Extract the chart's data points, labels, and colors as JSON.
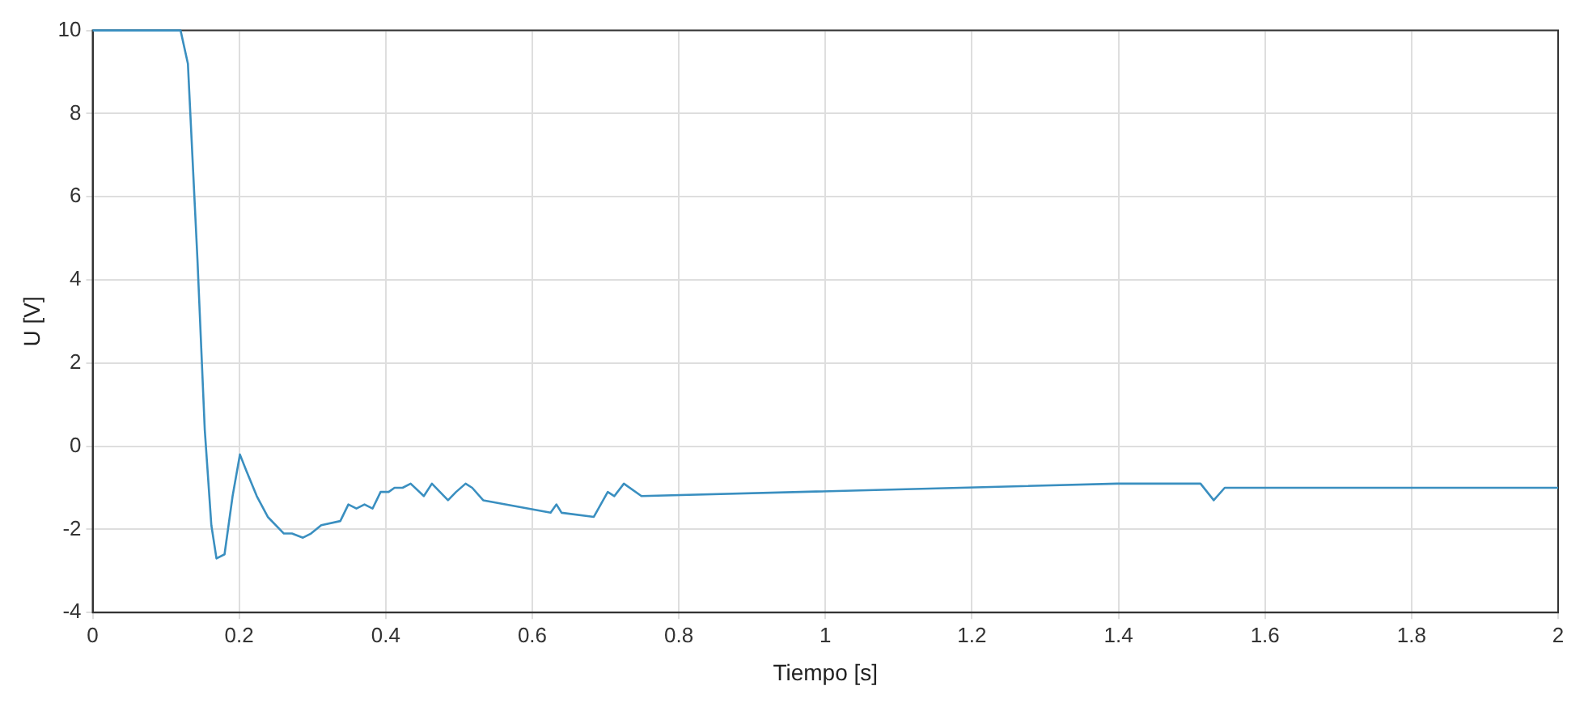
{
  "chart_data": {
    "type": "line",
    "xlabel": "Tiempo [s]",
    "ylabel": "U [V]",
    "x": [
      0,
      0.12,
      0.13,
      0.143,
      0.153,
      0.162,
      0.169,
      0.18,
      0.191,
      0.201,
      0.21,
      0.224,
      0.239,
      0.261,
      0.272,
      0.287,
      0.298,
      0.312,
      0.338,
      0.349,
      0.36,
      0.371,
      0.382,
      0.393,
      0.404,
      0.412,
      0.423,
      0.434,
      0.452,
      0.463,
      0.474,
      0.485,
      0.496,
      0.509,
      0.518,
      0.533,
      0.625,
      0.633,
      0.64,
      0.684,
      0.703,
      0.712,
      0.725,
      0.749,
      1.398,
      1.512,
      1.53,
      1.545,
      2
    ],
    "series": [
      {
        "color": "#3a8fc0",
        "values": [
          10,
          10,
          9.2,
          4.5,
          0.4,
          -1.9,
          -2.7,
          -2.6,
          -1.2,
          -0.2,
          -0.6,
          -1.2,
          -1.7,
          -2.1,
          -2.1,
          -2.2,
          -2.1,
          -1.9,
          -1.8,
          -1.4,
          -1.5,
          -1.4,
          -1.5,
          -1.1,
          -1.1,
          -1,
          -1,
          -0.9,
          -1.2,
          -0.9,
          -1.1,
          -1.3,
          -1.1,
          -0.9,
          -1,
          -1.3,
          -1.6,
          -1.4,
          -1.6,
          -1.7,
          -1.1,
          -1.2,
          -0.9,
          -1.2,
          -0.9,
          -0.9,
          -1.3,
          -1,
          -1
        ]
      }
    ],
    "xlim": [
      0,
      2
    ],
    "xticks": [
      0,
      0.2,
      0.4,
      0.6,
      0.8,
      1,
      1.2,
      1.4,
      1.6,
      1.8,
      2
    ],
    "ylim": [
      -4,
      10
    ],
    "yticks": [
      -4,
      -2,
      0,
      2,
      4,
      6,
      8,
      10
    ],
    "grid": true,
    "legend": false,
    "marker": "none",
    "line_style": "solid"
  }
}
